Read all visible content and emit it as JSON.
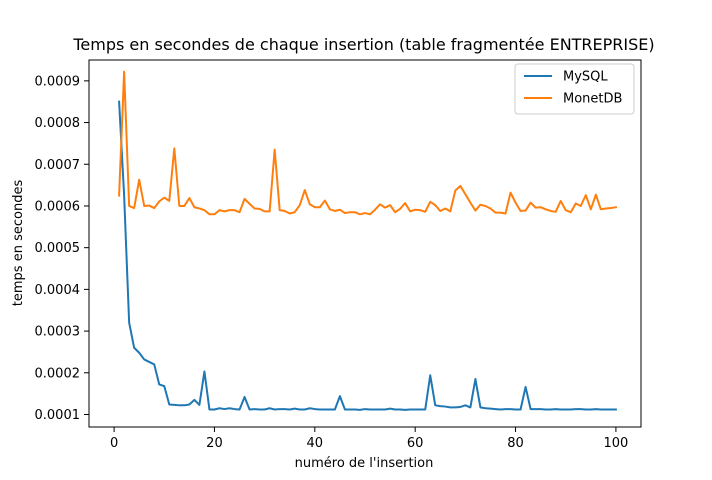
{
  "chart_data": {
    "type": "line",
    "title": "Temps en secondes de chaque insertion (table fragmentée ENTREPRISE)",
    "xlabel": "numéro de l'insertion",
    "ylabel": "temps en secondes",
    "xlim": [
      -5,
      105
    ],
    "ylim": [
      7e-05,
      0.00095
    ],
    "xticks": [
      0,
      20,
      40,
      60,
      80,
      100
    ],
    "xtick_labels": [
      "0",
      "20",
      "40",
      "60",
      "80",
      "100"
    ],
    "yticks": [
      0.0001,
      0.0002,
      0.0003,
      0.0004,
      0.0005,
      0.0006,
      0.0007,
      0.0008,
      0.0009
    ],
    "ytick_labels": [
      "0.0001",
      "0.0002",
      "0.0003",
      "0.0004",
      "0.0005",
      "0.0006",
      "0.0007",
      "0.0008",
      "0.0009"
    ],
    "grid": false,
    "legend_position": "top-right",
    "x": [
      1,
      2,
      3,
      4,
      5,
      6,
      7,
      8,
      9,
      10,
      11,
      12,
      13,
      14,
      15,
      16,
      17,
      18,
      19,
      20,
      21,
      22,
      23,
      24,
      25,
      26,
      27,
      28,
      29,
      30,
      31,
      32,
      33,
      34,
      35,
      36,
      37,
      38,
      39,
      40,
      41,
      42,
      43,
      44,
      45,
      46,
      47,
      48,
      49,
      50,
      51,
      52,
      53,
      54,
      55,
      56,
      57,
      58,
      59,
      60,
      61,
      62,
      63,
      64,
      65,
      66,
      67,
      68,
      69,
      70,
      71,
      72,
      73,
      74,
      75,
      76,
      77,
      78,
      79,
      80,
      81,
      82,
      83,
      84,
      85,
      86,
      87,
      88,
      89,
      90,
      91,
      92,
      93,
      94,
      95,
      96,
      97,
      98,
      99,
      100
    ],
    "series": [
      {
        "name": "MySQL",
        "color": "#1f77b4",
        "values": [
          0.00085,
          0.000625,
          0.00032,
          0.00026,
          0.000248,
          0.000232,
          0.000226,
          0.00022,
          0.000172,
          0.000168,
          0.000124,
          0.000123,
          0.000122,
          0.000122,
          0.000124,
          0.000135,
          0.000123,
          0.000203,
          0.000112,
          0.000112,
          0.000115,
          0.000113,
          0.000115,
          0.000113,
          0.000112,
          0.000142,
          0.000112,
          0.000113,
          0.000112,
          0.000112,
          0.000115,
          0.000112,
          0.000113,
          0.000113,
          0.000112,
          0.000114,
          0.000112,
          0.000112,
          0.000115,
          0.000113,
          0.000112,
          0.000112,
          0.000112,
          0.000112,
          0.000144,
          0.000112,
          0.000112,
          0.000112,
          0.000111,
          0.000113,
          0.000112,
          0.000112,
          0.000112,
          0.000112,
          0.000114,
          0.000112,
          0.000112,
          0.000111,
          0.000112,
          0.000112,
          0.000112,
          0.000112,
          0.000194,
          0.000122,
          0.00012,
          0.000119,
          0.000117,
          0.000117,
          0.000118,
          0.000122,
          0.000117,
          0.000185,
          0.000117,
          0.000115,
          0.000114,
          0.000113,
          0.000112,
          0.000113,
          0.000113,
          0.000112,
          0.000112,
          0.000166,
          0.000113,
          0.000113,
          0.000113,
          0.000112,
          0.000112,
          0.000113,
          0.000112,
          0.000112,
          0.000112,
          0.000113,
          0.000113,
          0.000112,
          0.000112,
          0.000113,
          0.000112,
          0.000112,
          0.000112,
          0.000112
        ]
      },
      {
        "name": "MonetDB",
        "color": "#ff7f0e",
        "values": [
          0.000625,
          0.000922,
          0.0006,
          0.000595,
          0.000663,
          0.0006,
          0.000601,
          0.000595,
          0.000611,
          0.00062,
          0.000612,
          0.000738,
          0.0006,
          0.0006,
          0.000619,
          0.000597,
          0.000594,
          0.00059,
          0.00058,
          0.00058,
          0.00059,
          0.000587,
          0.00059,
          0.00059,
          0.000585,
          0.000617,
          0.000605,
          0.000594,
          0.000593,
          0.000587,
          0.000587,
          0.000735,
          0.00059,
          0.000588,
          0.000582,
          0.000585,
          0.000602,
          0.000638,
          0.000604,
          0.000597,
          0.000597,
          0.000613,
          0.000592,
          0.000588,
          0.000591,
          0.000583,
          0.000585,
          0.000585,
          0.00058,
          0.000583,
          0.00058,
          0.000591,
          0.000604,
          0.000596,
          0.000602,
          0.000585,
          0.000593,
          0.000607,
          0.000587,
          0.000591,
          0.00059,
          0.000586,
          0.00061,
          0.000602,
          0.000588,
          0.000594,
          0.000587,
          0.000637,
          0.000648,
          0.000628,
          0.000608,
          0.000589,
          0.000603,
          0.0006,
          0.000594,
          0.000584,
          0.000584,
          0.000582,
          0.000632,
          0.000608,
          0.000588,
          0.000589,
          0.000608,
          0.000596,
          0.000597,
          0.000592,
          0.000588,
          0.000586,
          0.000612,
          0.00059,
          0.000585,
          0.000606,
          0.0006,
          0.000626,
          0.000592,
          0.000627,
          0.000592,
          0.000594,
          0.000595,
          0.000597
        ]
      }
    ]
  }
}
